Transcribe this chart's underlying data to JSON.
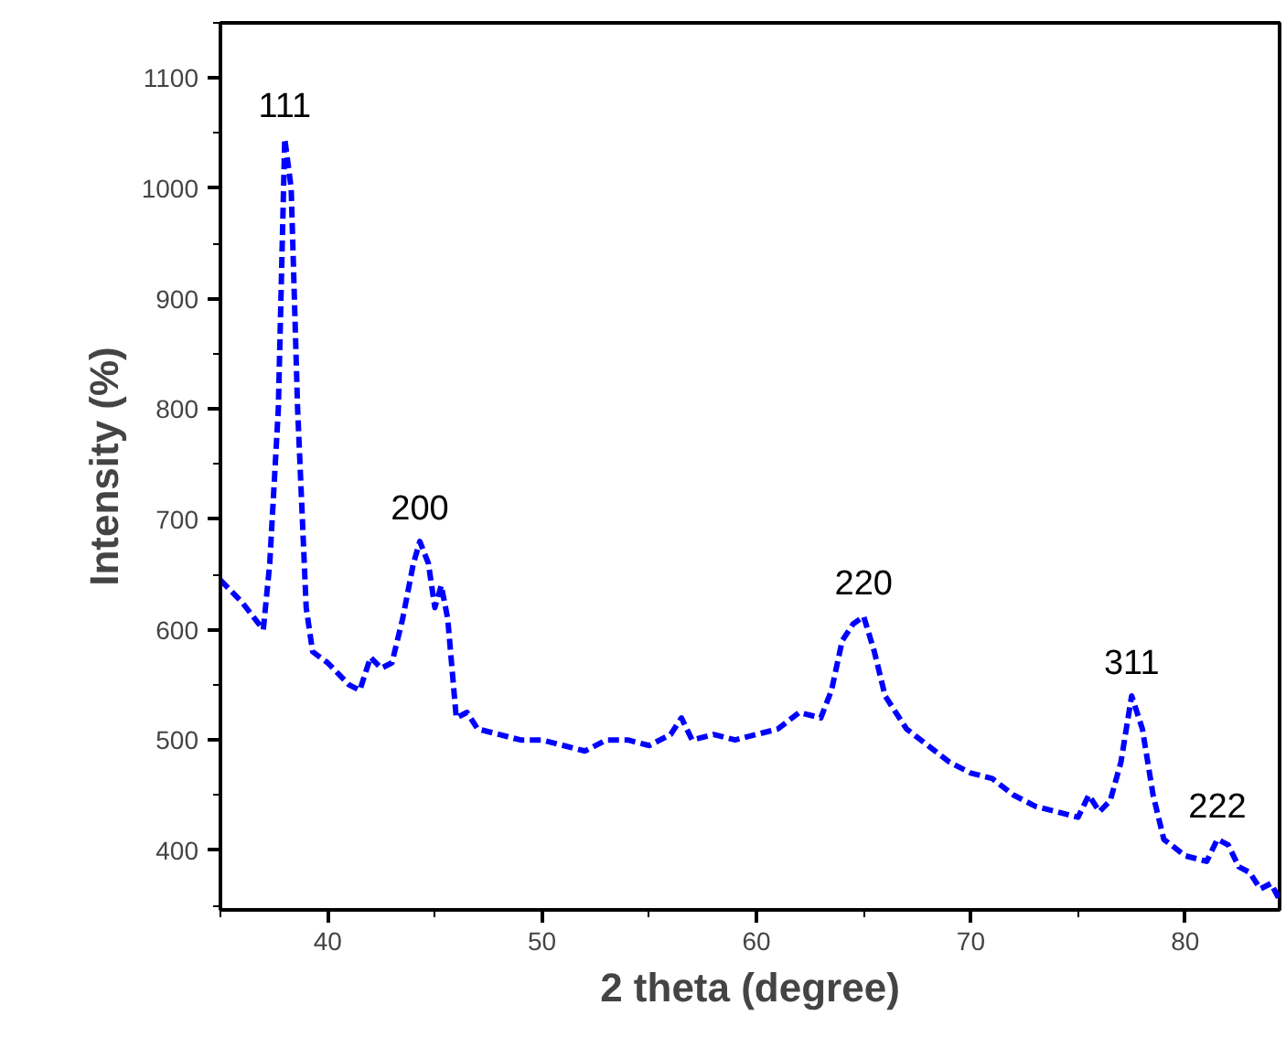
{
  "chart_data": {
    "type": "line",
    "xlabel": "2 theta (degree)",
    "ylabel": "Intensity (%)",
    "xlim": [
      35,
      84.4
    ],
    "ylim": [
      346,
      1150
    ],
    "xticks": [
      40,
      50,
      60,
      70,
      80
    ],
    "yticks": [
      400,
      500,
      600,
      700,
      800,
      900,
      1000,
      1100
    ],
    "grid": false,
    "marker": "none",
    "line_style": "dashed",
    "series": [
      {
        "color": "#0000ff",
        "x": [
          35,
          36,
          37,
          37.3,
          37.7,
          38,
          38.3,
          38.6,
          39,
          39.3,
          40,
          41,
          41.5,
          42,
          42.5,
          43,
          43.5,
          44,
          44.3,
          44.7,
          45,
          45.3,
          45.6,
          46,
          46.5,
          47,
          48,
          49,
          50,
          51,
          52,
          53,
          54,
          55,
          56,
          56.5,
          57,
          58,
          59,
          60,
          61,
          62,
          63,
          63.5,
          64,
          64.5,
          65,
          65.5,
          66,
          67,
          68,
          69,
          70,
          71,
          72,
          73,
          74,
          75,
          75.5,
          76,
          76.5,
          77,
          77.5,
          78,
          78.5,
          79,
          80,
          81,
          81.5,
          82,
          82.5,
          83,
          83.5,
          84,
          84.4
        ],
        "values": [
          645,
          625,
          600,
          660,
          800,
          1045,
          1000,
          800,
          620,
          580,
          570,
          550,
          545,
          575,
          565,
          570,
          610,
          660,
          680,
          660,
          620,
          640,
          610,
          520,
          525,
          510,
          505,
          500,
          500,
          495,
          490,
          500,
          500,
          495,
          505,
          520,
          500,
          505,
          500,
          505,
          510,
          525,
          520,
          545,
          590,
          605,
          612,
          580,
          540,
          510,
          495,
          480,
          470,
          465,
          450,
          440,
          435,
          430,
          450,
          435,
          445,
          480,
          540,
          510,
          450,
          410,
          395,
          390,
          410,
          405,
          385,
          380,
          365,
          370,
          355
        ]
      }
    ],
    "annotations": [
      {
        "text": "111",
        "x": 38,
        "y": 1045
      },
      {
        "text": "200",
        "x": 44.3,
        "y": 680
      },
      {
        "text": "220",
        "x": 65,
        "y": 612
      },
      {
        "text": "311",
        "x": 77.5,
        "y": 540
      },
      {
        "text": "222",
        "x": 81.5,
        "y": 410
      }
    ]
  }
}
